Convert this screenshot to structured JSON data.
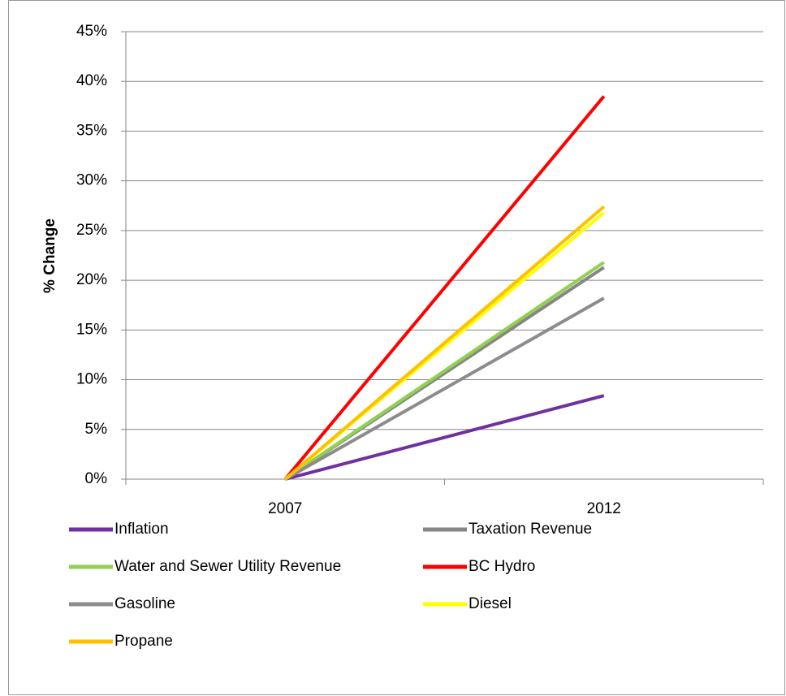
{
  "chart_data": {
    "type": "line",
    "y_label": "% Change",
    "categories": [
      "2007",
      "2012"
    ],
    "series": [
      {
        "name": "Inflation",
        "color": "#7030a0",
        "values": [
          0,
          8.4
        ]
      },
      {
        "name": "Taxation Revenue",
        "color": "#868686",
        "values": [
          0,
          21.3
        ]
      },
      {
        "name": "Water and Sewer Utility Revenue",
        "color": "#92d050",
        "values": [
          0,
          21.8
        ]
      },
      {
        "name": "BC Hydro",
        "color": "#ff0000",
        "values": [
          0,
          38.5
        ]
      },
      {
        "name": "Gasoline",
        "color": "#8c8c8c",
        "values": [
          0,
          18.2
        ]
      },
      {
        "name": "Diesel",
        "color": "#ffff00",
        "values": [
          0,
          26.8
        ]
      },
      {
        "name": "Propane",
        "color": "#ffc000",
        "values": [
          0,
          27.4
        ]
      }
    ],
    "ylim": [
      0,
      45
    ],
    "yticks": [
      {
        "value": 0,
        "label": "0%"
      },
      {
        "value": 5,
        "label": "5%"
      },
      {
        "value": 10,
        "label": "10%"
      },
      {
        "value": 15,
        "label": "15%"
      },
      {
        "value": 20,
        "label": "20%"
      },
      {
        "value": 25,
        "label": "25%"
      },
      {
        "value": 30,
        "label": "30%"
      },
      {
        "value": 35,
        "label": "35%"
      },
      {
        "value": 40,
        "label": "40%"
      },
      {
        "value": 45,
        "label": "45%"
      }
    ],
    "grid": true,
    "legend": "bottom"
  }
}
